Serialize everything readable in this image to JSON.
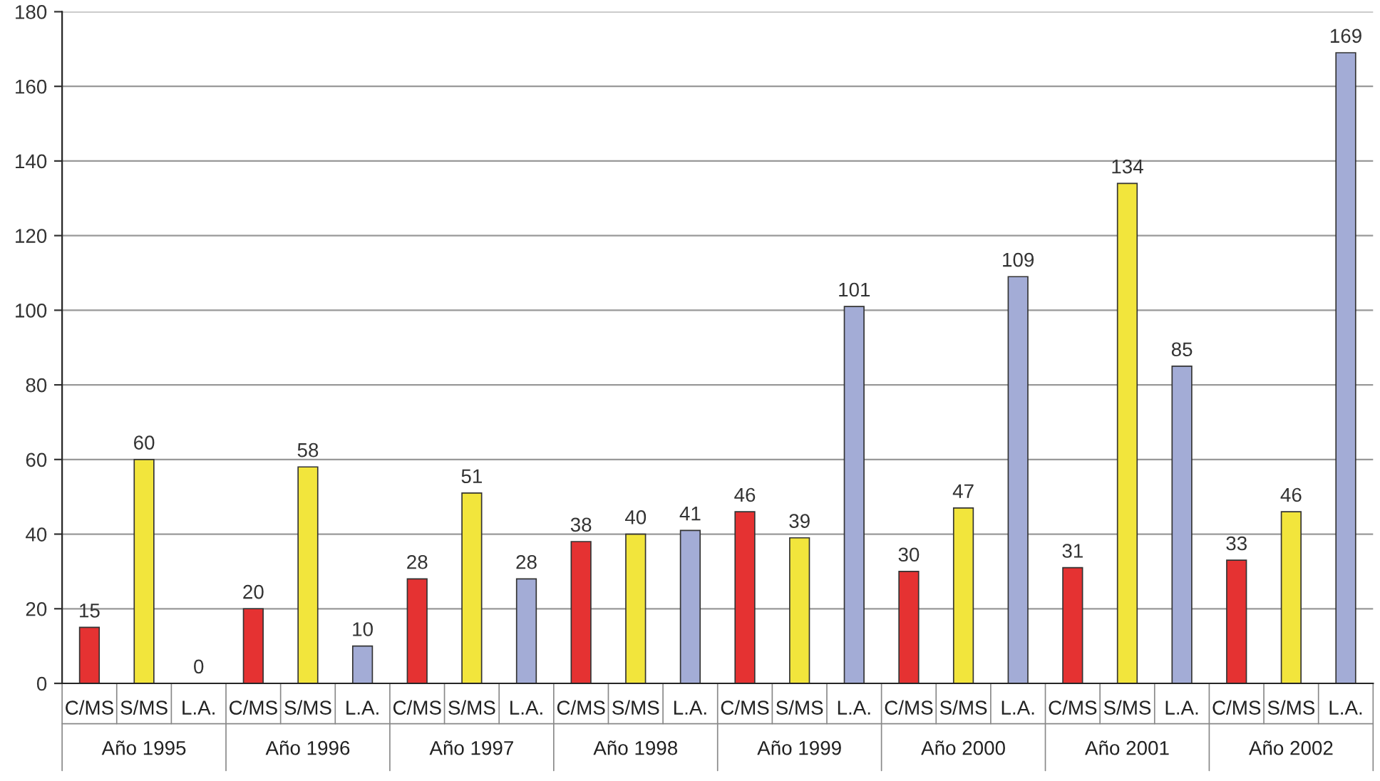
{
  "chart_data": {
    "type": "bar",
    "categories": [
      "Año 1995",
      "Año 1996",
      "Año 1997",
      "Año 1998",
      "Año 1999",
      "Año 2000",
      "Año 2001",
      "Año 2002"
    ],
    "series": [
      {
        "name": "C/MS",
        "color": "#e53232",
        "values": [
          15,
          20,
          28,
          38,
          46,
          30,
          31,
          33
        ]
      },
      {
        "name": "S/MS",
        "color": "#f2e53c",
        "values": [
          60,
          58,
          51,
          40,
          39,
          47,
          134,
          46
        ]
      },
      {
        "name": "L.A.",
        "color": "#a3acd6",
        "values": [
          0,
          10,
          28,
          41,
          101,
          109,
          85,
          169
        ]
      }
    ],
    "ylim": [
      0,
      180
    ],
    "yticks": [
      0,
      20,
      40,
      60,
      80,
      100,
      120,
      140,
      160,
      180
    ],
    "grid": "y",
    "data_labels": true,
    "legend": false
  }
}
